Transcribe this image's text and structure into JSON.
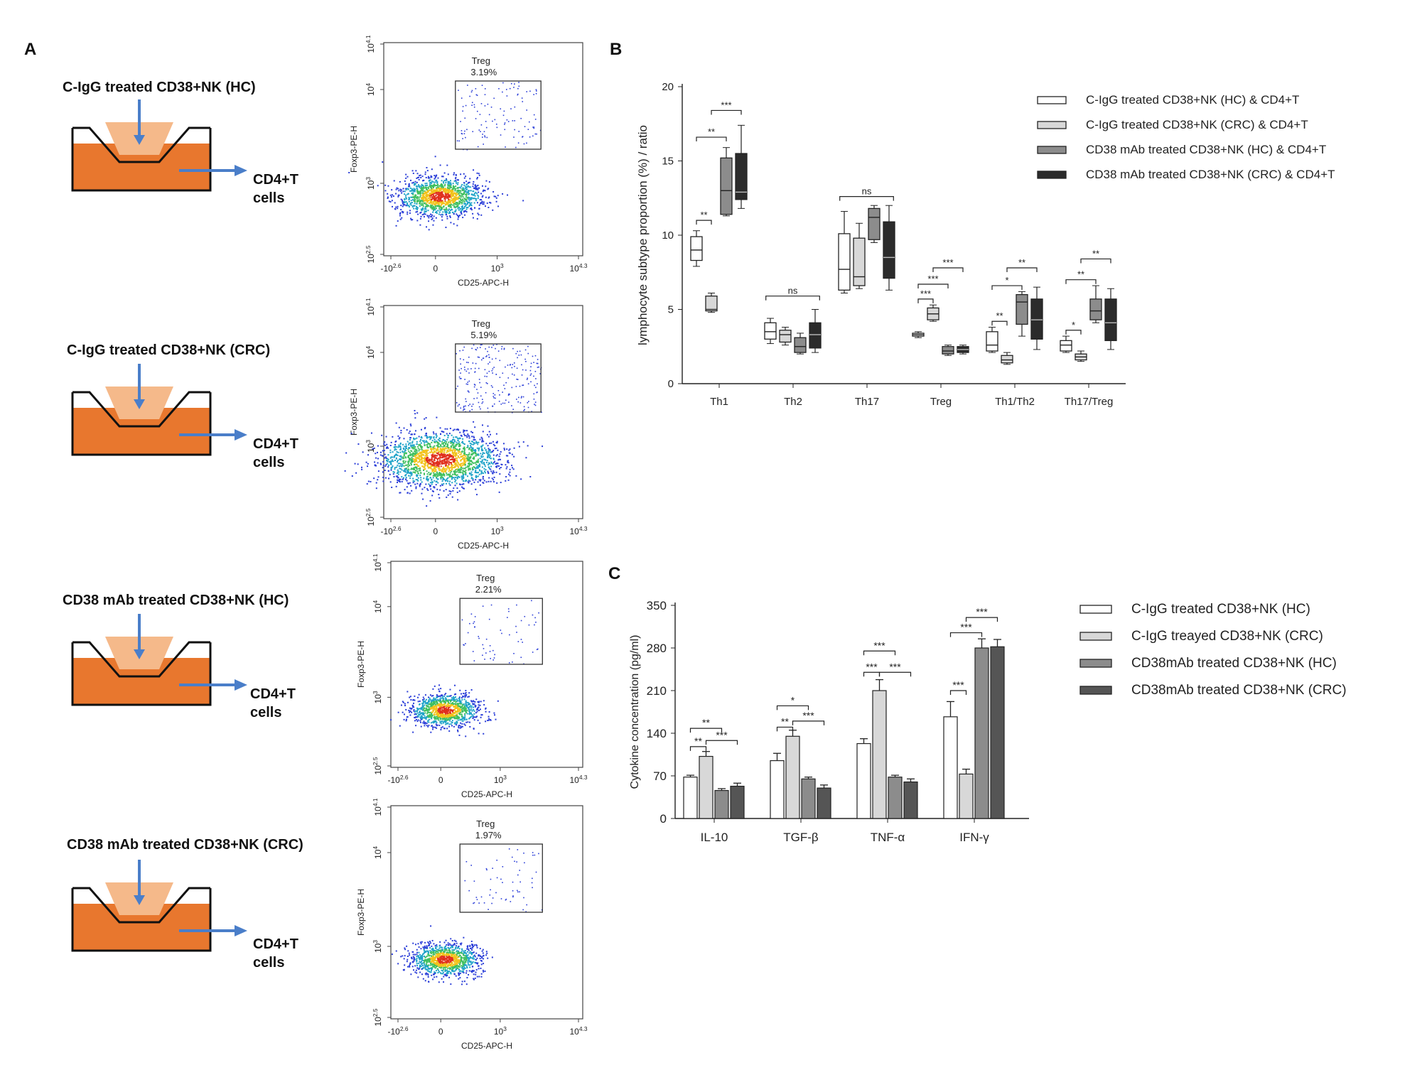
{
  "panel_labels": {
    "a": "A",
    "b": "B",
    "c": "C"
  },
  "colors": {
    "orange": "#e8772e",
    "light_orange": "#f5b98a",
    "arrow": "#4a7ec9",
    "gate": "#333333"
  },
  "panel_a": {
    "rows": [
      {
        "title": "C-IgG treated CD38+NK (HC)",
        "cd4_line1": "CD4+T",
        "cd4_line2": "cells",
        "flow": {
          "gate_name": "Treg",
          "gate_pct": "3.19%",
          "ylabel": "Foxp3-PE-H",
          "xlabel": "CD25-APC-H",
          "yticks": [
            "10^4.1",
            "10^4",
            "10^3",
            "10^2.5"
          ],
          "xticks": [
            "-10^2.6",
            "0",
            "10^3",
            "10^4.3"
          ],
          "spread": 1.0
        }
      },
      {
        "title": "C-IgG treated CD38+NK (CRC)",
        "cd4_line1": "CD4+T",
        "cd4_line2": "cells",
        "flow": {
          "gate_name": "Treg",
          "gate_pct": "5.19%",
          "ylabel": "Foxp3-PE-H",
          "xlabel": "CD25-APC-H",
          "yticks": [
            "10^4.1",
            "10^4",
            "10^3",
            "10^2.5"
          ],
          "xticks": [
            "-10^2.6",
            "0",
            "10^3",
            "10^4.3"
          ],
          "spread": 1.4
        }
      },
      {
        "title": "CD38 mAb treated CD38+NK (HC)",
        "cd4_line1": "CD4+T",
        "cd4_line2": "cells",
        "flow": {
          "gate_name": "Treg",
          "gate_pct": "2.21%",
          "ylabel": "Foxp3-PE-H",
          "xlabel": "CD25-APC-H",
          "yticks": [
            "10^4.1",
            "10^4",
            "10^3",
            "10^2.5"
          ],
          "xticks": [
            "-10^2.6",
            "0",
            "10^3",
            "10^4.3"
          ],
          "spread": 0.8
        }
      },
      {
        "title": "CD38 mAb treated CD38+NK (CRC)",
        "cd4_line1": "CD4+T",
        "cd4_line2": "cells",
        "flow": {
          "gate_name": "Treg",
          "gate_pct": "1.97%",
          "ylabel": "Foxp3-PE-H",
          "xlabel": "CD25-APC-H",
          "yticks": [
            "10^4.1",
            "10^4",
            "10^3",
            "10^2.5"
          ],
          "xticks": [
            "-10^2.6",
            "0",
            "10^3",
            "10^4.3"
          ],
          "spread": 0.8
        }
      }
    ]
  },
  "chart_data": [
    {
      "type": "box",
      "title": "",
      "ylabel": "lymphocyte subtype proportion (%) / ratio",
      "ylim": [
        0,
        20
      ],
      "yticks": [
        0,
        5,
        10,
        15,
        20
      ],
      "categories": [
        "Th1",
        "Th2",
        "Th17",
        "Treg",
        "Th1/Th2",
        "Th17/Treg"
      ],
      "series": [
        {
          "name": "C-IgG treated CD38+NK (HC) & CD4+T",
          "color": "#ffffff",
          "boxes": [
            [
              7.9,
              8.3,
              9.0,
              9.9,
              10.3
            ],
            [
              2.7,
              3.0,
              3.5,
              4.1,
              4.4
            ],
            [
              6.1,
              6.3,
              7.7,
              10.1,
              11.6
            ],
            [
              3.1,
              3.2,
              3.3,
              3.4,
              3.5
            ],
            [
              2.1,
              2.2,
              2.6,
              3.5,
              3.8
            ],
            [
              2.1,
              2.2,
              2.6,
              2.9,
              3.2
            ]
          ]
        },
        {
          "name": "C-IgG treated CD38+NK (CRC) & CD4+T",
          "color": "#d8d8d8",
          "boxes": [
            [
              4.8,
              4.9,
              5.0,
              5.9,
              6.1
            ],
            [
              2.6,
              2.8,
              3.3,
              3.6,
              3.8
            ],
            [
              6.4,
              6.6,
              7.2,
              9.8,
              10.8
            ],
            [
              4.2,
              4.3,
              4.7,
              5.1,
              5.3
            ],
            [
              1.3,
              1.4,
              1.6,
              1.9,
              2.1
            ],
            [
              1.5,
              1.6,
              1.8,
              2.0,
              2.2
            ]
          ]
        },
        {
          "name": "CD38 mAb treated CD38+NK (HC) & CD4+T",
          "color": "#8c8c8c",
          "boxes": [
            [
              11.3,
              11.4,
              13.0,
              15.2,
              15.9
            ],
            [
              2.0,
              2.1,
              2.5,
              3.1,
              3.4
            ],
            [
              9.5,
              9.7,
              11.2,
              11.8,
              12.0
            ],
            [
              1.9,
              2.0,
              2.2,
              2.5,
              2.6
            ],
            [
              3.2,
              4.0,
              5.5,
              6.0,
              6.2
            ],
            [
              4.1,
              4.3,
              4.9,
              5.7,
              6.6
            ]
          ]
        },
        {
          "name": "CD38 mAb treated CD38+NK (CRC) & CD4+T",
          "color": "#2b2b2b",
          "boxes": [
            [
              11.8,
              12.4,
              12.9,
              15.5,
              17.4
            ],
            [
              2.1,
              2.4,
              3.3,
              4.1,
              5.0
            ],
            [
              6.3,
              7.1,
              8.5,
              10.9,
              12.0
            ],
            [
              2.0,
              2.1,
              2.3,
              2.5,
              2.6
            ],
            [
              2.3,
              3.0,
              4.3,
              5.7,
              6.5
            ],
            [
              2.3,
              2.9,
              4.1,
              5.7,
              6.4
            ]
          ]
        }
      ],
      "annotations": {
        "ns_th2": "ns",
        "ns_th17": "ns",
        "th1_a": "**",
        "th1_b": "**",
        "th1_c": "***",
        "treg_a": "***",
        "treg_b": "***",
        "treg_c": "***",
        "th1th2_a": "**",
        "th1th2_b": "*",
        "th1th2_c": "**",
        "th17treg_a": "*",
        "th17treg_b": "**",
        "th17treg_c": "**"
      }
    },
    {
      "type": "bar",
      "title": "",
      "ylabel": "Cytokine concentration (pg/ml)",
      "ylim": [
        0,
        350
      ],
      "yticks": [
        0,
        70,
        140,
        210,
        280,
        350
      ],
      "categories": [
        "IL-10",
        "TGF-β",
        "TNF-α",
        "IFN-γ"
      ],
      "series": [
        {
          "name": "C-IgG treated CD38+NK (HC)",
          "color": "#ffffff",
          "values": [
            68,
            95,
            123,
            167
          ],
          "errors": [
            3,
            12,
            8,
            25
          ]
        },
        {
          "name": "C-IgG treayed CD38+NK (CRC)",
          "color": "#d8d8d8",
          "values": [
            102,
            135,
            210,
            73
          ],
          "errors": [
            8,
            10,
            18,
            8
          ]
        },
        {
          "name": "CD38mAb treated CD38+NK (HC)",
          "color": "#8c8c8c",
          "values": [
            46,
            65,
            68,
            280
          ],
          "errors": [
            3,
            3,
            3,
            15
          ]
        },
        {
          "name": "CD38mAb treated CD38+NK (CRC)",
          "color": "#555555",
          "values": [
            53,
            50,
            60,
            282
          ],
          "errors": [
            5,
            5,
            5,
            12
          ]
        }
      ],
      "annotations": {
        "il10_a": "**",
        "il10_b": "**",
        "il10_c": "***",
        "tgf_a": "*",
        "tgf_b": "**",
        "tgf_c": "***",
        "tnf_a": "***",
        "tnf_b": "***",
        "tnf_c": "***",
        "ifn_a": "***",
        "ifn_b": "***",
        "ifn_c": "***"
      }
    }
  ]
}
